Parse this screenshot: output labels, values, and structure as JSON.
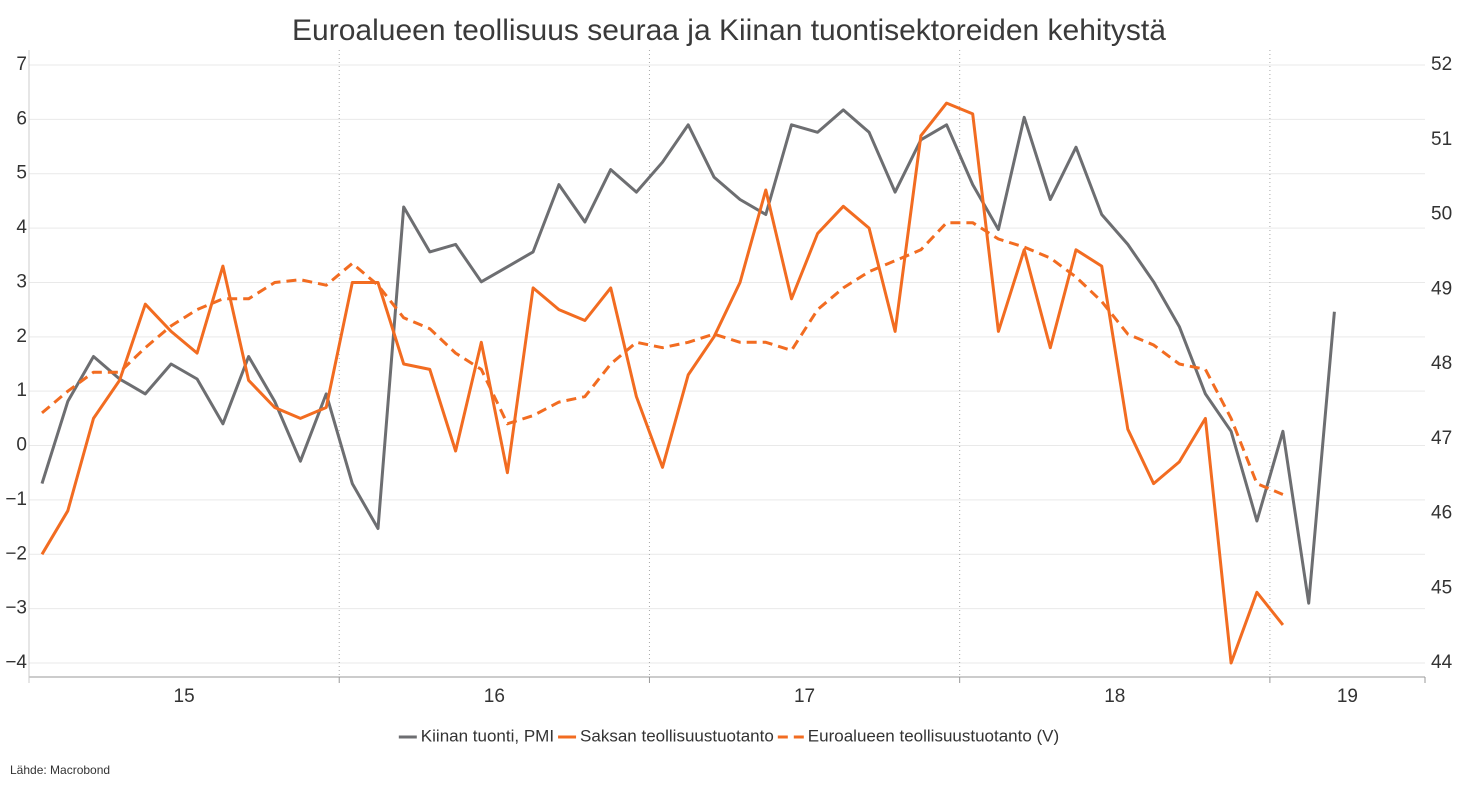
{
  "chart_data": {
    "type": "line",
    "title": "Euroalueen teollisuus seuraa ja Kiinan tuontisektoreiden kehitystä",
    "source": "Lähde: Macrobond",
    "x": [
      15.042,
      15.125,
      15.208,
      15.292,
      15.375,
      15.458,
      15.542,
      15.625,
      15.708,
      15.792,
      15.875,
      15.958,
      16.042,
      16.125,
      16.208,
      16.292,
      16.375,
      16.458,
      16.542,
      16.625,
      16.708,
      16.792,
      16.875,
      16.958,
      17.042,
      17.125,
      17.208,
      17.292,
      17.375,
      17.458,
      17.542,
      17.625,
      17.708,
      17.792,
      17.875,
      17.958,
      18.042,
      18.125,
      18.208,
      18.292,
      18.375,
      18.458,
      18.542,
      18.625,
      18.708,
      18.792,
      18.875,
      18.958,
      19.042,
      19.125,
      19.208
    ],
    "xlim": [
      15,
      19.5
    ],
    "xticks": [
      {
        "value": 15.5,
        "label": "15"
      },
      {
        "value": 16.5,
        "label": "16"
      },
      {
        "value": 17.5,
        "label": "17"
      },
      {
        "value": 18.5,
        "label": "18"
      },
      {
        "value": 19.25,
        "label": "19"
      }
    ],
    "xgrid": [
      16,
      17,
      18,
      19
    ],
    "ylim": [
      -4,
      7
    ],
    "yticks": [
      {
        "value": -4,
        "label": "−4"
      },
      {
        "value": -3,
        "label": "−3"
      },
      {
        "value": -2,
        "label": "−2"
      },
      {
        "value": -1,
        "label": "−1"
      },
      0,
      1,
      2,
      3,
      4,
      5,
      6,
      7
    ],
    "y2lim": [
      44,
      52
    ],
    "y2ticks": [
      44,
      45,
      46,
      47,
      48,
      49,
      50,
      51,
      52
    ],
    "grid": true,
    "legend": "bottom",
    "series": [
      {
        "name": "Kiinan tuonti, PMI",
        "color": "#6d6e71",
        "axis": "y2",
        "dash": false,
        "values": [
          46.4,
          47.5,
          48.1,
          47.8,
          47.6,
          48.0,
          47.8,
          47.2,
          48.1,
          47.5,
          46.7,
          47.6,
          46.4,
          45.8,
          50.1,
          49.5,
          49.6,
          49.1,
          49.3,
          49.5,
          50.4,
          49.9,
          50.6,
          50.3,
          50.7,
          51.2,
          50.5,
          50.2,
          50.0,
          51.2,
          51.1,
          51.4,
          51.1,
          50.3,
          51.0,
          51.2,
          50.4,
          49.8,
          51.3,
          50.2,
          50.9,
          50.0,
          49.6,
          49.1,
          48.5,
          47.6,
          47.1,
          45.9,
          47.1,
          44.8,
          48.7
        ]
      },
      {
        "name": "Saksan teollisuustuotanto",
        "color": "#f26c21",
        "axis": "y",
        "dash": false,
        "values": [
          -2.0,
          -1.2,
          0.5,
          1.2,
          2.6,
          2.1,
          1.7,
          3.3,
          1.2,
          0.7,
          0.5,
          0.7,
          3.0,
          3.0,
          1.5,
          1.4,
          -0.1,
          1.9,
          -0.5,
          2.9,
          2.5,
          2.3,
          2.9,
          0.9,
          -0.4,
          1.3,
          2.0,
          3.0,
          4.7,
          2.7,
          3.9,
          4.4,
          4.0,
          2.1,
          5.7,
          6.3,
          6.1,
          2.1,
          3.6,
          1.8,
          3.6,
          3.3,
          0.3,
          -0.7,
          -0.3,
          0.5,
          -4.0,
          -2.7,
          -3.3,
          null,
          null
        ]
      },
      {
        "name": "Euroalueen teollisuustuotanto (V)",
        "color": "#f26c21",
        "axis": "y",
        "dash": true,
        "values": [
          0.6,
          1.0,
          1.35,
          1.35,
          1.8,
          2.2,
          2.5,
          2.7,
          2.7,
          3.0,
          3.05,
          2.95,
          3.35,
          2.95,
          2.35,
          2.15,
          1.7,
          1.4,
          0.4,
          0.55,
          0.8,
          0.9,
          1.5,
          1.9,
          1.8,
          1.9,
          2.05,
          1.9,
          1.9,
          1.75,
          2.5,
          2.9,
          3.2,
          3.4,
          3.6,
          4.1,
          4.1,
          3.8,
          3.65,
          3.45,
          3.1,
          2.65,
          2.05,
          1.85,
          1.5,
          1.4,
          0.5,
          -0.7,
          -0.9,
          null,
          null
        ]
      }
    ]
  }
}
